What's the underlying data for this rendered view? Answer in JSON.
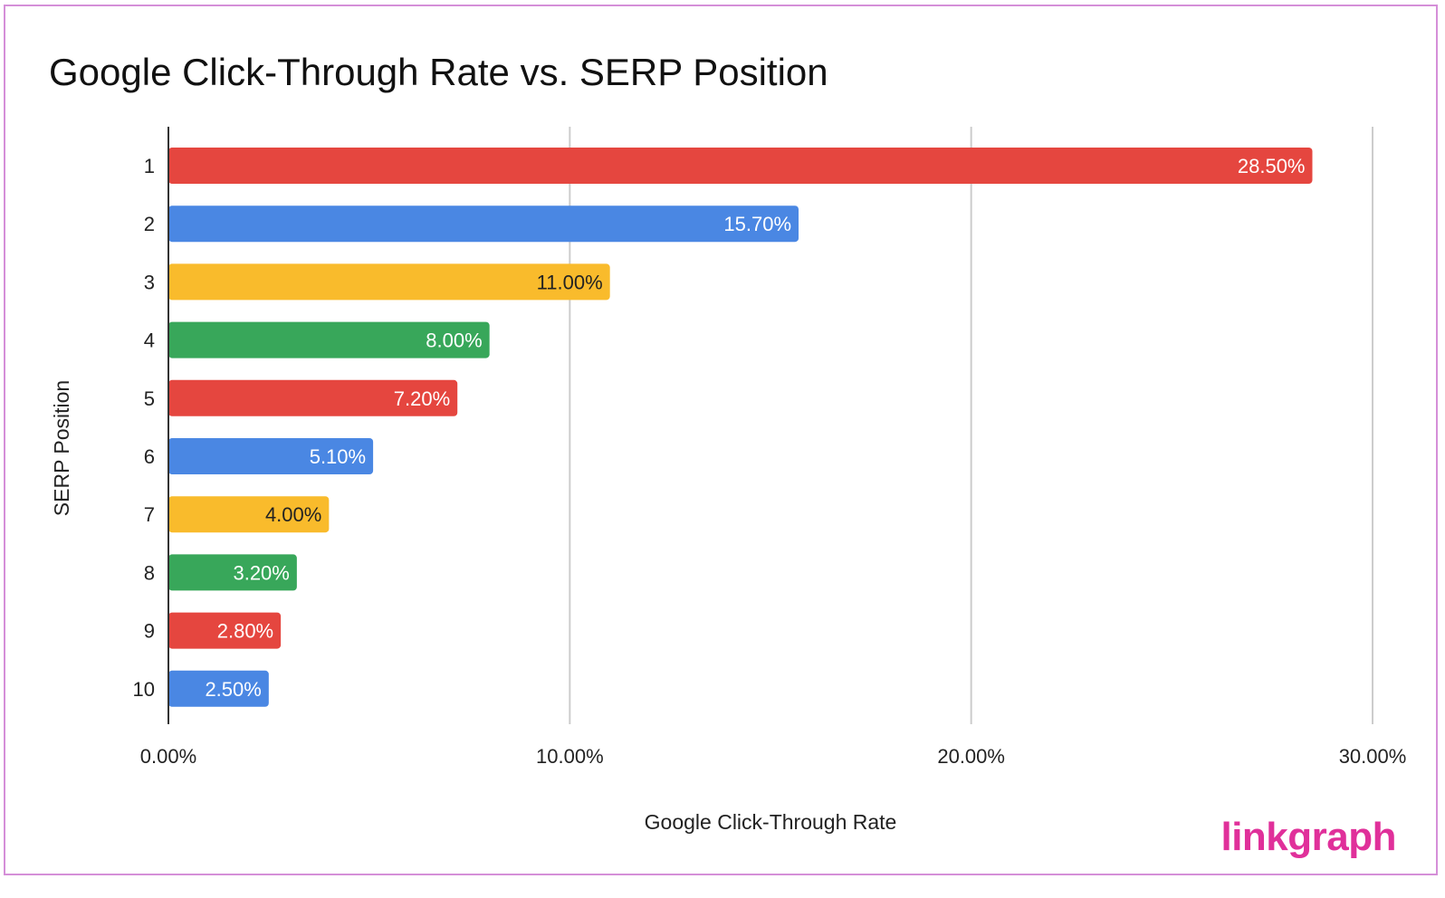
{
  "chart_data": {
    "type": "bar",
    "orientation": "horizontal",
    "title": "Google Click-Through Rate vs. SERP Position",
    "xlabel": "Google Click-Through Rate",
    "ylabel": "SERP Position",
    "categories": [
      "1",
      "2",
      "3",
      "4",
      "5",
      "6",
      "7",
      "8",
      "9",
      "10"
    ],
    "values": [
      28.5,
      15.7,
      11.0,
      8.0,
      7.2,
      5.1,
      4.0,
      3.2,
      2.8,
      2.5
    ],
    "data_labels": [
      "28.50%",
      "15.70%",
      "11.00%",
      "8.00%",
      "7.20%",
      "5.10%",
      "4.00%",
      "3.20%",
      "2.80%",
      "2.50%"
    ],
    "bar_colors": [
      "#e5463f",
      "#4a87e3",
      "#f9bb2c",
      "#38a75a",
      "#e5463f",
      "#4a87e3",
      "#f9bb2c",
      "#38a75a",
      "#e5463f",
      "#4a87e3"
    ],
    "label_colors": [
      "#ffffff",
      "#ffffff",
      "#222222",
      "#ffffff",
      "#ffffff",
      "#ffffff",
      "#222222",
      "#ffffff",
      "#ffffff",
      "#ffffff"
    ],
    "xlim": [
      0,
      30
    ],
    "xticks": [
      0,
      10,
      20,
      30
    ],
    "xtick_labels": [
      "0.00%",
      "10.00%",
      "20.00%",
      "30.00%"
    ],
    "grid": true
  },
  "watermark": "linkgraph"
}
